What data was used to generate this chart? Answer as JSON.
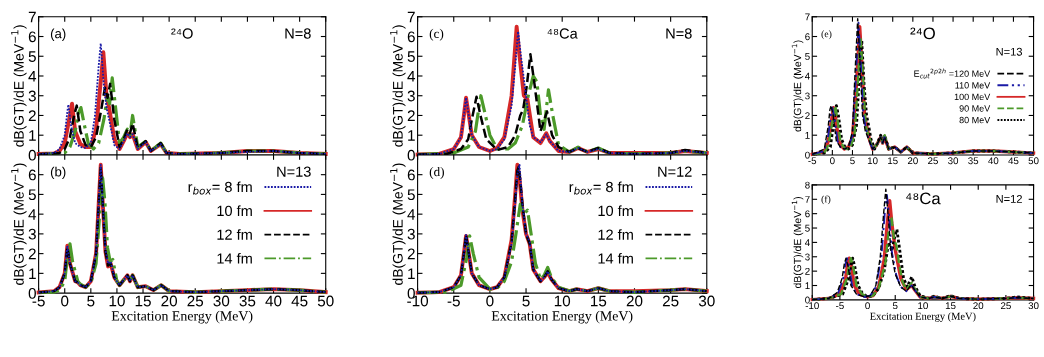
{
  "chart_data": [
    {
      "type": "line",
      "ylabel": "dB(GT)/dE (MeV$^{−1}$)",
      "annotations": [
        "(a)",
        "²⁴O",
        "N=8"
      ],
      "xlim": [
        -5,
        50
      ],
      "xticks": [
        -5,
        0,
        5,
        10,
        15,
        20,
        25,
        30,
        35,
        40,
        45,
        50
      ],
      "ylim": [
        0,
        7
      ],
      "yticks": [
        0,
        1,
        2,
        3,
        4,
        5,
        6,
        7
      ],
      "tick_labels": "y",
      "series": [
        {
          "color": "#1a1aa6",
          "line_style": "dotted",
          "x": [
            -5,
            -2,
            -1,
            0,
            0.5,
            0.7,
            1.2,
            2,
            3,
            4,
            5,
            5.8,
            6.5,
            6.9,
            7.5,
            8,
            8.5,
            9.5,
            10.5,
            11.3,
            12,
            12.5,
            13,
            14,
            15.5,
            16.5,
            18.4,
            19.5,
            22,
            30,
            35,
            40,
            45,
            50
          ],
          "values": [
            0.05,
            0.1,
            0.3,
            1.0,
            2.2,
            2.55,
            1.5,
            0.6,
            0.4,
            0.35,
            0.6,
            2.0,
            4.5,
            5.65,
            3.5,
            2.4,
            1.8,
            0.5,
            0.3,
            0.7,
            1.1,
            0.9,
            1.05,
            0.3,
            0.65,
            0.2,
            0.55,
            0.1,
            0.05,
            0.1,
            0.15,
            0.2,
            0.1,
            0.05
          ]
        },
        {
          "color": "#d62828",
          "line_style": "solid",
          "x": [
            -5,
            -2,
            -1,
            0,
            1,
            1.4,
            2,
            3,
            4,
            5,
            6,
            7,
            7.4,
            8,
            8.5,
            9.5,
            10.5,
            11.3,
            12,
            12.5,
            13,
            14,
            15.5,
            16.5,
            18.4,
            19.5,
            22,
            30,
            35,
            40,
            45,
            50
          ],
          "values": [
            0.05,
            0.08,
            0.2,
            0.6,
            2.0,
            2.6,
            1.2,
            0.55,
            0.4,
            0.4,
            1.3,
            4.0,
            5.2,
            3.0,
            2.4,
            0.8,
            0.3,
            0.7,
            1.1,
            0.9,
            1.05,
            0.3,
            0.65,
            0.2,
            0.55,
            0.1,
            0.05,
            0.1,
            0.2,
            0.2,
            0.1,
            0.05
          ]
        },
        {
          "color": "#000000",
          "line_style": "dashed",
          "x": [
            -5,
            -1,
            0,
            1,
            1.8,
            2.3,
            3,
            4,
            5,
            6,
            7,
            7.7,
            8.2,
            8.7,
            9.5,
            10.5,
            11.3,
            12,
            12.5,
            13,
            14,
            15.5,
            16.5,
            18.4,
            19.5,
            22,
            30,
            35,
            40,
            45,
            50
          ],
          "values": [
            0.03,
            0.1,
            0.3,
            0.9,
            2.0,
            2.5,
            1.2,
            0.5,
            0.4,
            0.9,
            2.3,
            3.4,
            2.9,
            3.6,
            1.8,
            0.4,
            0.8,
            1.3,
            1.1,
            1.6,
            0.35,
            0.7,
            0.2,
            0.6,
            0.1,
            0.05,
            0.1,
            0.2,
            0.2,
            0.1,
            0.05
          ]
        },
        {
          "color": "#4c9a2a",
          "line_style": "dashdot",
          "x": [
            -5,
            0,
            1,
            2,
            2.6,
            3.1,
            3.7,
            4.5,
            5.5,
            6.5,
            7.5,
            8.2,
            8.6,
            9.1,
            9.7,
            10.5,
            11.3,
            12,
            12.5,
            13,
            14,
            15.5,
            16.5,
            18.4,
            19.5,
            22,
            30,
            35,
            40,
            45,
            50
          ],
          "values": [
            0.02,
            0.1,
            0.4,
            1.2,
            2.1,
            2.4,
            1.6,
            0.6,
            0.3,
            0.6,
            1.8,
            3.0,
            2.6,
            3.9,
            2.5,
            0.6,
            0.9,
            1.3,
            1.0,
            2.0,
            0.4,
            0.7,
            0.2,
            0.6,
            0.1,
            0.05,
            0.1,
            0.2,
            0.2,
            0.1,
            0.05
          ]
        }
      ]
    },
    {
      "type": "line",
      "xlabel": "Excitation Energy (MeV)",
      "ylabel": "dB(GT)/dE (MeV$^{−1}$)",
      "annotations": [
        "(b)",
        "N=13"
      ],
      "legend": "right",
      "xlim": [
        -5,
        50
      ],
      "xticks": [
        -5,
        0,
        5,
        10,
        15,
        20,
        25,
        30,
        35,
        40,
        45,
        50
      ],
      "ylim": [
        0,
        7
      ],
      "yticks": [
        0,
        1,
        2,
        3,
        4,
        5,
        6
      ],
      "series": [
        {
          "name": "r$_{box}$= 8 fm",
          "color": "#1a1aa6",
          "line_style": "dotted",
          "x": [
            -5,
            -2,
            -1,
            0,
            0.5,
            1,
            2,
            2.5,
            3,
            4,
            5,
            6,
            6.5,
            6.9,
            7.3,
            7.8,
            8.3,
            8.8,
            9.5,
            10.5,
            12,
            12.5,
            13,
            14,
            15.5,
            17,
            18.5,
            20,
            25,
            30,
            35,
            40,
            45,
            50
          ],
          "values": [
            0.03,
            0.1,
            0.3,
            1.0,
            2.4,
            1.5,
            0.6,
            0.55,
            0.4,
            0.3,
            0.6,
            2.0,
            4.5,
            6.5,
            4.5,
            2.2,
            1.5,
            1.6,
            0.8,
            0.4,
            0.9,
            0.6,
            0.9,
            0.3,
            0.35,
            0.15,
            0.4,
            0.1,
            0.05,
            0.1,
            0.15,
            0.2,
            0.15,
            0.05
          ]
        },
        {
          "name": "10 fm",
          "color": "#d62828",
          "line_style": "solid",
          "x": [
            -5,
            -2,
            -1,
            0,
            0.5,
            1,
            2,
            2.5,
            3,
            4,
            5,
            6,
            6.5,
            6.9,
            7.3,
            7.8,
            8.3,
            8.8,
            9.5,
            10.5,
            12,
            12.5,
            13,
            14,
            15.5,
            17,
            18.5,
            20,
            25,
            30,
            35,
            40,
            45,
            50
          ],
          "values": [
            0.03,
            0.1,
            0.3,
            1.0,
            2.4,
            1.5,
            0.6,
            0.55,
            0.4,
            0.3,
            0.6,
            2.0,
            4.5,
            6.5,
            4.5,
            2.1,
            1.35,
            1.5,
            0.8,
            0.4,
            0.9,
            0.6,
            0.9,
            0.3,
            0.35,
            0.15,
            0.4,
            0.1,
            0.05,
            0.1,
            0.15,
            0.2,
            0.15,
            0.05
          ]
        },
        {
          "name": "12 fm",
          "color": "#000000",
          "line_style": "dashed",
          "x": [
            -5,
            -2,
            -1,
            0,
            0.5,
            1,
            2,
            2.5,
            3,
            4,
            5,
            6,
            6.5,
            6.9,
            7.3,
            7.8,
            8.3,
            8.8,
            9.5,
            10.5,
            12,
            12.5,
            13,
            14,
            15.5,
            17,
            18.5,
            20,
            25,
            30,
            35,
            40,
            45,
            50
          ],
          "values": [
            0.03,
            0.1,
            0.3,
            1.0,
            2.35,
            1.5,
            0.6,
            0.55,
            0.4,
            0.3,
            0.6,
            2.0,
            4.5,
            6.4,
            4.4,
            2.1,
            1.4,
            1.5,
            0.8,
            0.4,
            0.9,
            0.6,
            0.9,
            0.3,
            0.35,
            0.15,
            0.4,
            0.1,
            0.05,
            0.1,
            0.15,
            0.2,
            0.15,
            0.05
          ]
        },
        {
          "name": "14 fm",
          "color": "#4c9a2a",
          "line_style": "dashdot",
          "x": [
            -5,
            -2,
            -1,
            0,
            0.5,
            1,
            1.5,
            2.5,
            3,
            4,
            5,
            6,
            6.7,
            7.2,
            7.7,
            8.2,
            8.7,
            9.2,
            10,
            10.5,
            12,
            12.5,
            13,
            14,
            15.5,
            17,
            18.5,
            20,
            25,
            30,
            35,
            40,
            45,
            50
          ],
          "values": [
            0.03,
            0.05,
            0.15,
            0.6,
            1.8,
            2.5,
            1.6,
            0.6,
            0.45,
            0.3,
            0.5,
            1.5,
            4.0,
            6.0,
            4.6,
            2.3,
            1.6,
            1.7,
            0.6,
            0.4,
            0.9,
            0.6,
            0.9,
            0.3,
            0.35,
            0.15,
            0.4,
            0.1,
            0.05,
            0.1,
            0.15,
            0.2,
            0.15,
            0.05
          ]
        }
      ]
    },
    {
      "type": "line",
      "ylabel": "dB(GT)/dE (MeV$^{−1}$)",
      "annotations": [
        "(c)",
        "⁴⁸Ca",
        "N=8"
      ],
      "xlim": [
        -10,
        30
      ],
      "xticks": [
        -10,
        -5,
        0,
        5,
        10,
        15,
        20,
        25,
        30
      ],
      "ylim": [
        0,
        7
      ],
      "yticks": [
        0,
        1,
        2,
        3,
        4,
        5,
        6,
        7
      ],
      "tick_labels": "y",
      "series": [
        {
          "color": "#1a1aa6",
          "line_style": "dotted",
          "x": [
            -10,
            -7,
            -5,
            -4,
            -3.6,
            -3.3,
            -3,
            -2.5,
            -1.5,
            0,
            1,
            2,
            3,
            3.5,
            3.9,
            4.3,
            5,
            5.5,
            6,
            7,
            7.8,
            8.3,
            9.5,
            11,
            12.2,
            13.5,
            15,
            16.5,
            20,
            25,
            27,
            30
          ],
          "values": [
            0.02,
            0.05,
            0.3,
            0.9,
            2.0,
            2.9,
            2.2,
            1.0,
            0.4,
            0.2,
            0.3,
            0.8,
            2.5,
            4.5,
            6.25,
            5.0,
            3.0,
            1.5,
            0.9,
            0.65,
            1.05,
            0.7,
            0.2,
            0.15,
            0.35,
            0.15,
            0.3,
            0.1,
            0.05,
            0.1,
            0.2,
            0.1
          ]
        },
        {
          "color": "#d62828",
          "line_style": "solid",
          "x": [
            -10,
            -7,
            -5,
            -4,
            -3.6,
            -3.3,
            -3,
            -2.5,
            -1.5,
            0,
            1,
            2,
            3,
            3.4,
            3.7,
            4.1,
            4.7,
            5.2,
            6,
            7,
            7.8,
            8.3,
            9.5,
            11,
            12.2,
            13.5,
            15,
            16.5,
            20,
            25,
            27,
            30
          ],
          "values": [
            0.02,
            0.05,
            0.3,
            0.9,
            2.0,
            2.9,
            2.2,
            1.0,
            0.4,
            0.2,
            0.35,
            0.9,
            3.0,
            5.0,
            6.5,
            5.0,
            3.0,
            2.8,
            0.9,
            0.6,
            1.1,
            0.7,
            0.2,
            0.15,
            0.35,
            0.15,
            0.3,
            0.1,
            0.1,
            0.1,
            0.2,
            0.1
          ]
        },
        {
          "color": "#000000",
          "line_style": "dashed",
          "x": [
            -10,
            -6,
            -4,
            -3,
            -2.5,
            -1.85,
            -1.3,
            -0.5,
            1,
            2.5,
            3.5,
            4.2,
            4.6,
            5.1,
            5.6,
            6.2,
            7,
            7.9,
            8.6,
            9.5,
            11,
            12.2,
            13.5,
            15,
            16.5,
            20,
            25,
            27,
            30
          ],
          "values": [
            0.02,
            0.05,
            0.3,
            0.8,
            1.8,
            2.95,
            2.0,
            0.8,
            0.25,
            0.4,
            1.0,
            2.0,
            2.3,
            3.5,
            5.1,
            3.5,
            1.2,
            2.2,
            1.0,
            0.4,
            0.15,
            0.35,
            0.15,
            0.35,
            0.1,
            0.05,
            0.1,
            0.25,
            0.1
          ]
        },
        {
          "color": "#4c9a2a",
          "line_style": "dashdot",
          "x": [
            -10,
            -5,
            -3,
            -2,
            -1.6,
            -1.25,
            -0.8,
            0,
            1,
            2.5,
            3.5,
            4.5,
            5.3,
            6.0,
            6.5,
            7.0,
            7.5,
            8.1,
            8.7,
            9.5,
            11,
            12.2,
            13.5,
            15,
            16.5,
            20,
            25,
            27,
            30
          ],
          "values": [
            0.02,
            0.1,
            0.4,
            1.2,
            2.2,
            3.0,
            2.3,
            1.0,
            0.3,
            0.3,
            0.6,
            1.5,
            3.0,
            4.0,
            3.7,
            2.0,
            1.3,
            3.3,
            2.0,
            0.5,
            0.15,
            0.4,
            0.15,
            0.35,
            0.1,
            0.05,
            0.1,
            0.2,
            0.1
          ]
        }
      ]
    },
    {
      "type": "line",
      "xlabel": "Excitation Energy (MeV)",
      "ylabel": "dB(GT)/dE (MeV$^{−1}$)",
      "annotations": [
        "(d)",
        "N=12"
      ],
      "legend": "right",
      "xlim": [
        -10,
        30
      ],
      "xticks": [
        -10,
        -5,
        0,
        5,
        10,
        15,
        20,
        25,
        30
      ],
      "ylim": [
        0,
        7
      ],
      "yticks": [
        0,
        1,
        2,
        3,
        4,
        5,
        6
      ],
      "series": [
        {
          "name": "r$_{box}$= 8 fm",
          "color": "#1a1aa6",
          "line_style": "dotted",
          "x": [
            -10,
            -7,
            -5,
            -4,
            -3.6,
            -3.3,
            -3,
            -2.5,
            -1.5,
            0,
            1,
            2,
            3,
            3.5,
            3.8,
            4.1,
            4.5,
            5,
            5.5,
            6,
            7,
            7.5,
            8,
            8.5,
            9.5,
            11,
            12,
            13.5,
            15,
            16.5,
            20,
            25,
            27,
            30
          ],
          "values": [
            0.02,
            0.05,
            0.3,
            0.9,
            2.0,
            2.95,
            2.2,
            1.0,
            0.4,
            0.2,
            0.3,
            0.8,
            2.5,
            4.5,
            6.0,
            6.5,
            4.5,
            3.0,
            2.6,
            1.2,
            0.6,
            0.8,
            1.1,
            0.7,
            0.25,
            0.1,
            0.2,
            0.1,
            0.25,
            0.1,
            0.05,
            0.15,
            0.2,
            0.1
          ]
        },
        {
          "name": "10 fm",
          "color": "#d62828",
          "line_style": "solid",
          "x": [
            -10,
            -7,
            -5,
            -4,
            -3.6,
            -3.3,
            -3,
            -2.5,
            -1.5,
            0,
            1,
            2,
            3,
            3.5,
            3.8,
            4.1,
            4.5,
            5,
            5.5,
            6,
            7,
            7.5,
            8,
            8.5,
            9.5,
            11,
            12,
            13.5,
            15,
            16.5,
            20,
            25,
            27,
            30
          ],
          "values": [
            0.02,
            0.05,
            0.3,
            0.9,
            2.0,
            2.9,
            2.2,
            1.0,
            0.4,
            0.2,
            0.3,
            0.8,
            2.7,
            5.0,
            6.5,
            5.8,
            4.2,
            3.0,
            2.5,
            1.2,
            0.6,
            0.8,
            1.05,
            0.7,
            0.25,
            0.1,
            0.2,
            0.1,
            0.25,
            0.1,
            0.1,
            0.15,
            0.2,
            0.1
          ]
        },
        {
          "name": "12 fm",
          "color": "#000000",
          "line_style": "dashed",
          "x": [
            -10,
            -7,
            -5,
            -4,
            -3.6,
            -3.3,
            -3,
            -2.5,
            -1.5,
            0,
            1,
            2,
            3,
            3.5,
            3.8,
            4.0,
            4.5,
            5,
            5.5,
            6,
            7,
            7.5,
            8,
            8.5,
            9.5,
            11,
            12,
            13.5,
            15,
            16.5,
            20,
            25,
            27,
            30
          ],
          "values": [
            0.02,
            0.05,
            0.3,
            0.9,
            2.0,
            2.95,
            2.2,
            1.0,
            0.4,
            0.2,
            0.3,
            0.8,
            2.6,
            4.8,
            6.2,
            6.4,
            4.5,
            3.0,
            2.5,
            1.2,
            0.6,
            0.8,
            1.1,
            0.7,
            0.25,
            0.1,
            0.2,
            0.1,
            0.25,
            0.1,
            0.05,
            0.15,
            0.2,
            0.1
          ]
        },
        {
          "name": "14 fm",
          "color": "#4c9a2a",
          "line_style": "dashdot",
          "x": [
            -10,
            -6,
            -4,
            -3.2,
            -2.8,
            -2.3,
            -1.5,
            0,
            1,
            2,
            3,
            3.6,
            4.2,
            4.7,
            5.2,
            5.7,
            6.3,
            7,
            7.5,
            8,
            8.5,
            9.5,
            11,
            12,
            13.5,
            15,
            16.5,
            20,
            25,
            27,
            30
          ],
          "values": [
            0.02,
            0.05,
            0.4,
            1.8,
            2.9,
            2.0,
            0.8,
            0.2,
            0.25,
            0.6,
            1.6,
            3.0,
            4.5,
            4.0,
            4.2,
            3.0,
            1.5,
            0.7,
            0.9,
            1.3,
            0.8,
            0.3,
            0.1,
            0.2,
            0.1,
            0.25,
            0.1,
            0.05,
            0.15,
            0.2,
            0.1
          ]
        }
      ]
    },
    {
      "type": "line",
      "ylabel": "dB(GT)/dE (MeV$^{−1}$)",
      "annotations": [
        "(e)",
        "²⁴O",
        "N=13"
      ],
      "legend": "right",
      "xlim": [
        -5,
        50
      ],
      "xticks": [
        -5,
        0,
        5,
        10,
        15,
        20,
        25,
        30,
        35,
        40,
        45,
        50
      ],
      "ylim": [
        0,
        7
      ],
      "yticks": [
        0,
        1,
        2,
        3,
        4,
        5,
        6,
        7
      ],
      "series": [
        {
          "name": "E$_{cut}$$^{2p2h}$ =120 MeV",
          "color": "#000000",
          "line_style": "dashed",
          "x": [
            -5,
            -2,
            -1,
            -0.6,
            -0.3,
            0.2,
            1,
            2,
            3,
            4,
            5,
            5.6,
            6.3,
            6.9,
            7.5,
            8.2,
            9,
            10,
            11,
            12,
            12.5,
            13,
            14,
            15.5,
            17,
            18.5,
            20,
            25,
            30,
            35,
            40,
            45,
            50
          ],
          "values": [
            0.03,
            0.3,
            1.5,
            2.3,
            2.5,
            2.0,
            0.7,
            0.4,
            0.3,
            0.4,
            1.2,
            4.0,
            6.9,
            4.5,
            2.0,
            1.2,
            0.8,
            0.3,
            0.5,
            0.9,
            0.6,
            0.9,
            0.3,
            0.4,
            0.15,
            0.4,
            0.1,
            0.05,
            0.1,
            0.2,
            0.2,
            0.15,
            0.1
          ]
        },
        {
          "name": "110 MeV",
          "color": "#1a1aa6",
          "line_style": "dashdotdot",
          "x": [
            -5,
            -2,
            -1,
            -0.4,
            0,
            0.5,
            1.3,
            2,
            3,
            4,
            5,
            5.8,
            6.5,
            7.1,
            7.7,
            8.4,
            9,
            10,
            11,
            12,
            12.5,
            13,
            14,
            15.5,
            17,
            18.5,
            20,
            25,
            30,
            35,
            40,
            45,
            50
          ],
          "values": [
            0.03,
            0.2,
            1.0,
            2.0,
            2.4,
            1.9,
            0.7,
            0.4,
            0.3,
            0.4,
            1.0,
            3.8,
            6.7,
            4.5,
            2.0,
            1.3,
            0.8,
            0.3,
            0.5,
            0.9,
            0.6,
            0.9,
            0.3,
            0.4,
            0.15,
            0.4,
            0.1,
            0.05,
            0.1,
            0.2,
            0.2,
            0.15,
            0.1
          ]
        },
        {
          "name": "100 MeV",
          "color": "#d62828",
          "line_style": "solid",
          "x": [
            -5,
            -2,
            -1,
            -0.1,
            0.3,
            0.8,
            1.6,
            2.5,
            3,
            4,
            5,
            6,
            6.8,
            7.4,
            8,
            8.6,
            9.2,
            10,
            11,
            12,
            12.5,
            13,
            14,
            15.5,
            17,
            18.5,
            20,
            25,
            30,
            35,
            40,
            45,
            50
          ],
          "values": [
            0.03,
            0.15,
            0.7,
            1.9,
            2.4,
            1.9,
            0.7,
            0.4,
            0.3,
            0.4,
            0.9,
            3.6,
            6.5,
            4.4,
            2.0,
            1.4,
            0.8,
            0.3,
            0.5,
            0.9,
            0.6,
            0.9,
            0.3,
            0.4,
            0.15,
            0.4,
            0.1,
            0.05,
            0.1,
            0.2,
            0.2,
            0.15,
            0.1
          ]
        },
        {
          "name": "90 MeV",
          "color": "#4c9a2a",
          "line_style": "dashed",
          "x": [
            -5,
            -2,
            -1,
            0.2,
            0.7,
            1.2,
            2,
            2.8,
            3.5,
            4.5,
            5.5,
            6.3,
            7.0,
            7.6,
            8.1,
            8.5,
            9.3,
            10,
            11,
            12,
            12.5,
            13,
            14,
            15.5,
            17,
            18.5,
            20,
            25,
            30,
            35,
            40,
            45,
            50
          ],
          "values": [
            0.03,
            0.1,
            0.5,
            1.9,
            2.5,
            1.9,
            0.7,
            0.4,
            0.3,
            0.4,
            1.0,
            3.5,
            6.0,
            4.0,
            2.0,
            1.3,
            0.8,
            0.3,
            0.5,
            0.9,
            0.6,
            1.0,
            0.3,
            0.4,
            0.15,
            0.4,
            0.1,
            0.05,
            0.1,
            0.2,
            0.2,
            0.15,
            0.1
          ]
        },
        {
          "name": "80 MeV",
          "color": "#000000",
          "line_style": "dotted",
          "x": [
            -5,
            -2,
            -0.5,
            0.5,
            1.0,
            1.5,
            2.3,
            3,
            4,
            5,
            6,
            6.7,
            7.3,
            7.9,
            8.5,
            9,
            9.6,
            10.5,
            11,
            12,
            12.5,
            13,
            14,
            15.5,
            17,
            18.5,
            20,
            25,
            30,
            35,
            40,
            45,
            50
          ],
          "values": [
            0.03,
            0.1,
            0.4,
            1.9,
            2.5,
            2.0,
            0.8,
            0.45,
            0.3,
            0.5,
            1.5,
            4.0,
            5.8,
            3.5,
            2.0,
            1.5,
            0.8,
            0.3,
            0.5,
            1.0,
            0.7,
            1.0,
            0.3,
            0.4,
            0.15,
            0.4,
            0.1,
            0.05,
            0.1,
            0.2,
            0.2,
            0.15,
            0.1
          ]
        }
      ]
    },
    {
      "type": "line",
      "xlabel": "Excitation Energy (MeV)",
      "ylabel": "dB(GT)/dE (MeV$^{−1}$)",
      "annotations": [
        "(f)",
        "⁴⁸Ca",
        "N=12"
      ],
      "xlim": [
        -10,
        30
      ],
      "xticks": [
        -10,
        -5,
        0,
        5,
        10,
        15,
        20,
        25,
        30
      ],
      "ylim": [
        0,
        8
      ],
      "yticks": [
        0,
        1,
        2,
        3,
        4,
        5,
        6,
        7,
        8
      ],
      "series": [
        {
          "color": "#000000",
          "line_style": "dashed",
          "x": [
            -10,
            -7,
            -5.5,
            -4.6,
            -4.2,
            -3.9,
            -3.5,
            -3,
            -2,
            -0.5,
            0.5,
            1.5,
            2.3,
            2.9,
            3.3,
            3.7,
            4.2,
            5,
            6,
            7,
            7.6,
            8,
            8.5,
            9.5,
            11,
            12,
            13.5,
            15,
            16.5,
            20,
            25,
            27,
            30
          ],
          "values": [
            0.02,
            0.1,
            0.5,
            1.5,
            2.5,
            2.9,
            2.3,
            1.0,
            0.4,
            0.2,
            0.3,
            1.0,
            3.0,
            6.0,
            7.7,
            6.0,
            3.5,
            1.8,
            0.9,
            0.6,
            0.9,
            1.0,
            0.7,
            0.2,
            0.1,
            0.2,
            0.1,
            0.25,
            0.1,
            0.05,
            0.1,
            0.15,
            0.1
          ]
        },
        {
          "color": "#1a1aa6",
          "line_style": "dashdotdot",
          "x": [
            -10,
            -7,
            -5.3,
            -4.4,
            -4.0,
            -3.7,
            -3.3,
            -2.8,
            -2,
            -0.5,
            0.5,
            1.5,
            2.5,
            3.1,
            3.5,
            3.9,
            4.4,
            5.2,
            6,
            7,
            7.6,
            8,
            8.5,
            9.5,
            11,
            12,
            13.5,
            15,
            16.5,
            20,
            25,
            27,
            30
          ],
          "values": [
            0.02,
            0.1,
            0.5,
            1.5,
            2.5,
            2.9,
            2.3,
            1.0,
            0.4,
            0.2,
            0.3,
            0.9,
            3.0,
            6.0,
            7.3,
            5.8,
            3.3,
            1.7,
            0.9,
            0.6,
            0.9,
            1.0,
            0.7,
            0.2,
            0.1,
            0.2,
            0.1,
            0.25,
            0.1,
            0.05,
            0.1,
            0.15,
            0.1
          ]
        },
        {
          "color": "#d62828",
          "line_style": "solid",
          "x": [
            -10,
            -7,
            -5,
            -4,
            -3.6,
            -3.3,
            -2.9,
            -2.4,
            -1.5,
            0,
            1,
            2,
            3,
            3.6,
            4.0,
            4.4,
            5,
            5.5,
            6,
            7,
            7.6,
            8,
            8.5,
            9.5,
            11,
            12,
            13.5,
            15,
            16.5,
            20,
            25,
            27,
            30
          ],
          "values": [
            0.02,
            0.1,
            0.4,
            1.4,
            2.5,
            2.9,
            2.3,
            1.0,
            0.4,
            0.2,
            0.3,
            0.9,
            2.8,
            5.5,
            6.9,
            5.3,
            3.5,
            2.5,
            1.5,
            0.7,
            0.9,
            1.0,
            0.7,
            0.2,
            0.1,
            0.2,
            0.1,
            0.25,
            0.1,
            0.05,
            0.1,
            0.15,
            0.1
          ]
        },
        {
          "color": "#4c9a2a",
          "line_style": "dashed",
          "x": [
            -10,
            -7,
            -4.8,
            -3.8,
            -3.3,
            -3.0,
            -2.6,
            -2,
            -1,
            0,
            1,
            2,
            3.2,
            3.8,
            4.3,
            4.8,
            5.2,
            5.7,
            6.3,
            7,
            7.6,
            8,
            8.5,
            9.5,
            11,
            12,
            13.5,
            15,
            16.5,
            20,
            25,
            27,
            30
          ],
          "values": [
            0.02,
            0.1,
            0.4,
            1.4,
            2.4,
            2.9,
            2.3,
            1.0,
            0.4,
            0.2,
            0.3,
            0.8,
            2.5,
            4.8,
            5.8,
            4.2,
            3.8,
            2.5,
            1.3,
            0.7,
            1.0,
            1.2,
            0.8,
            0.2,
            0.1,
            0.2,
            0.1,
            0.25,
            0.1,
            0.05,
            0.1,
            0.15,
            0.1
          ]
        },
        {
          "color": "#000000",
          "line_style": "dotted",
          "x": [
            -10,
            -7,
            -4.5,
            -3.5,
            -3.0,
            -2.7,
            -2.3,
            -1.7,
            -1,
            0,
            1,
            2,
            3,
            3.8,
            4.4,
            4.9,
            5.3,
            5.8,
            6.5,
            7.2,
            7.6,
            8,
            8.5,
            9.5,
            11,
            12,
            13.5,
            15,
            16.5,
            20,
            25,
            27,
            30
          ],
          "values": [
            0.02,
            0.1,
            0.4,
            1.4,
            2.4,
            2.9,
            2.3,
            1.0,
            0.5,
            0.2,
            0.3,
            0.8,
            2.0,
            4.0,
            3.4,
            4.4,
            4.9,
            3.5,
            1.5,
            0.9,
            1.3,
            1.6,
            1.0,
            0.3,
            0.1,
            0.25,
            0.1,
            0.3,
            0.1,
            0.05,
            0.1,
            0.2,
            0.1
          ]
        }
      ]
    }
  ]
}
